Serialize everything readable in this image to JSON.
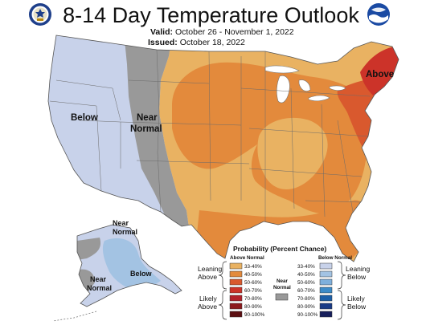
{
  "title": "8-14 Day Temperature Outlook",
  "valid": {
    "label": "Valid:",
    "value": "October 26 - November 1, 2022"
  },
  "issued": {
    "label": "Issued:",
    "value": "October 18, 2022"
  },
  "map_labels": {
    "below": "Below",
    "near_normal_line1": "Near",
    "near_normal_line2": "Normal",
    "above": "Above",
    "ak_near_1_line1": "Near",
    "ak_near_1_line2": "Normal",
    "ak_near_2_line1": "Near",
    "ak_near_2_line2": "Normal",
    "ak_below": "Below"
  },
  "legend": {
    "title": "Probability (Percent Chance)",
    "above_header": "Above Normal",
    "below_header": "Below Normal",
    "near_normal": [
      "Near",
      "Normal"
    ],
    "near_color": "#999999",
    "leaning_above": [
      "Leaning",
      "Above"
    ],
    "likely_above": [
      "Likely",
      "Above"
    ],
    "leaning_below": [
      "Leaning",
      "Below"
    ],
    "likely_below": [
      "Likely",
      "Below"
    ],
    "above": [
      {
        "label": "33-40%",
        "color": "#e9b262"
      },
      {
        "label": "40-50%",
        "color": "#e38a3c"
      },
      {
        "label": "50-60%",
        "color": "#d9592e"
      },
      {
        "label": "60-70%",
        "color": "#cc3329"
      },
      {
        "label": "70-80%",
        "color": "#b2212b"
      },
      {
        "label": "80-90%",
        "color": "#8c1a1d"
      },
      {
        "label": "90-100%",
        "color": "#5c0f12"
      }
    ],
    "below": [
      {
        "label": "33-40%",
        "color": "#c8d2ea"
      },
      {
        "label": "40-50%",
        "color": "#a3c3e3"
      },
      {
        "label": "50-60%",
        "color": "#7fb0dc"
      },
      {
        "label": "60-70%",
        "color": "#3d8bc8"
      },
      {
        "label": "70-80%",
        "color": "#1c5fa8"
      },
      {
        "label": "80-90%",
        "color": "#183a86"
      },
      {
        "label": "90-100%",
        "color": "#171f5c"
      }
    ]
  },
  "colors": {
    "near": "#999999",
    "below_33": "#c8d2ea",
    "below_40": "#a3c3e3"
  }
}
